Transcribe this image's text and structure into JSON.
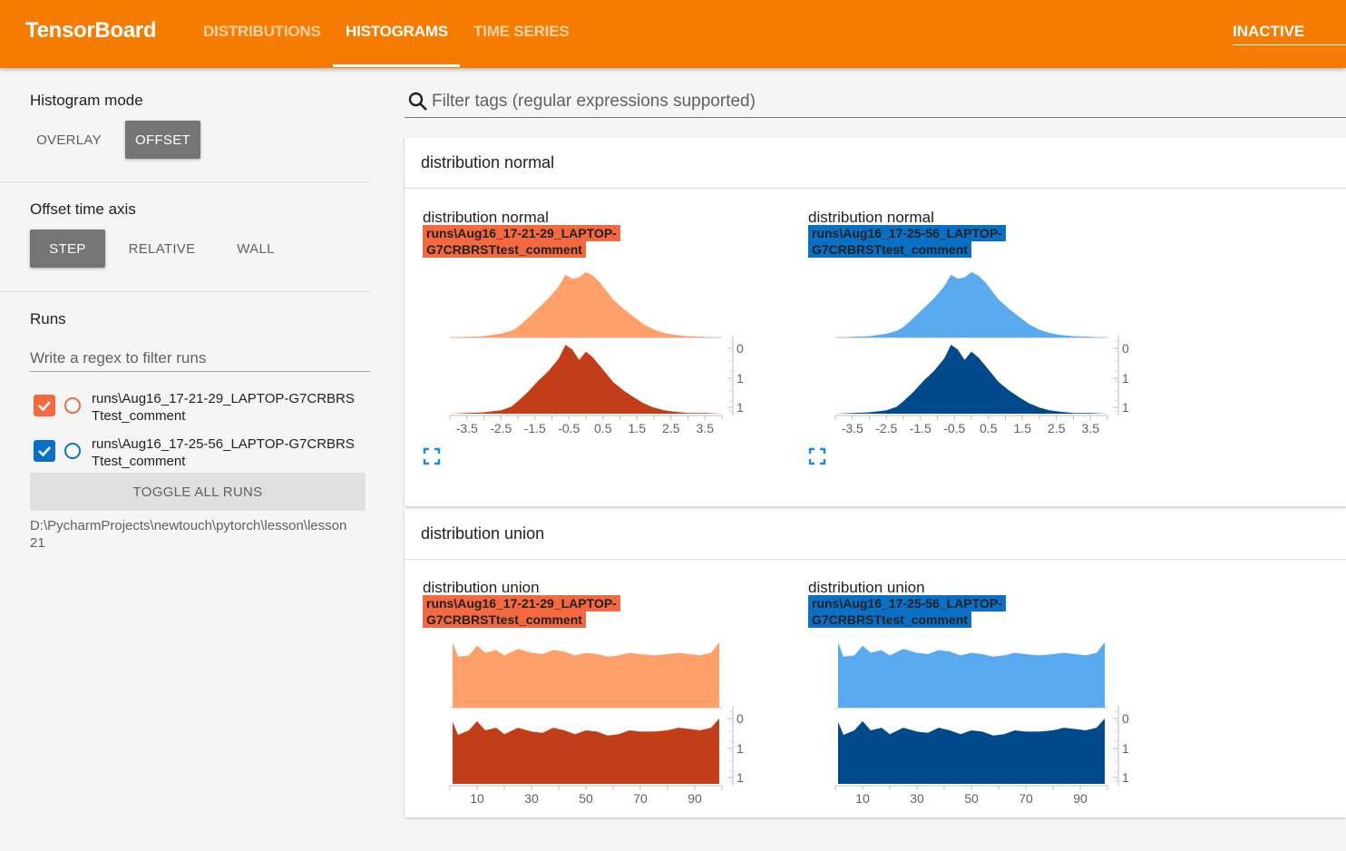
{
  "header": {
    "brand": "TensorBoard",
    "tabs": [
      {
        "label": "DISTRIBUTIONS",
        "active": false
      },
      {
        "label": "HISTOGRAMS",
        "active": true
      },
      {
        "label": "TIME SERIES",
        "active": false
      }
    ],
    "status": "INACTIVE"
  },
  "sidebar": {
    "histogram_mode": {
      "title": "Histogram mode",
      "options": [
        "OVERLAY",
        "OFFSET"
      ],
      "selected": "OFFSET"
    },
    "offset_time_axis": {
      "title": "Offset time axis",
      "options": [
        "STEP",
        "RELATIVE",
        "WALL"
      ],
      "selected": "STEP"
    },
    "runs": {
      "title": "Runs",
      "filter_placeholder": "Write a regex to filter runs",
      "items": [
        {
          "label": "runs\\Aug16_17-21-29_LAPTOP-G7CRBRSTtest_comment",
          "line1": "runs\\Aug16_17-21-29_LAPTOP-G7CRBRS",
          "line2": "Ttest_comment",
          "checked": true,
          "color": "#f4693f"
        },
        {
          "label": "runs\\Aug16_17-25-56_LAPTOP-G7CRBRSTtest_comment",
          "line1": "runs\\Aug16_17-25-56_LAPTOP-G7CRBRS",
          "line2": "Ttest_comment",
          "checked": true,
          "color": "#0a70c6"
        }
      ],
      "toggle_label": "TOGGLE ALL RUNS",
      "logdir_line1": "D:\\PycharmProjects\\newtouch\\pytorch\\lesson\\lesson",
      "logdir_line2": "21"
    }
  },
  "main": {
    "filter_placeholder": "Filter tags (regular expressions supported)",
    "cards": [
      {
        "title": "distribution normal",
        "charts": [
          {
            "title": "distribution normal",
            "run_line1": "runs\\Aug16_17-21-29_LAPTOP-",
            "run_line2": "G7CRBRSTtest_comment",
            "tag_color": "#f4693f",
            "light": "#ffa06b",
            "dark": "#c23e18"
          },
          {
            "title": "distribution normal",
            "run_line1": "runs\\Aug16_17-25-56_LAPTOP-",
            "run_line2": "G7CRBRSTtest_comment",
            "tag_color": "#0a70c6",
            "light": "#5aaaf0",
            "dark": "#00498a"
          }
        ]
      },
      {
        "title": "distribution union",
        "charts": [
          {
            "title": "distribution union",
            "run_line1": "runs\\Aug16_17-21-29_LAPTOP-",
            "run_line2": "G7CRBRSTtest_comment",
            "tag_color": "#f4693f",
            "light": "#ffa06b",
            "dark": "#c23e18"
          },
          {
            "title": "distribution union",
            "run_line1": "runs\\Aug16_17-25-56_LAPTOP-",
            "run_line2": "G7CRBRSTtest_comment",
            "tag_color": "#0a70c6",
            "light": "#5aaaf0",
            "dark": "#00498a"
          }
        ]
      }
    ]
  },
  "chart_data": [
    {
      "type": "area",
      "title": "distribution normal",
      "mode": "offset",
      "x_ticks": [
        "-3.5",
        "-2.5",
        "-1.5",
        "-0.5",
        "0.5",
        "1.5",
        "2.5",
        "3.5"
      ],
      "y_ticks": [
        "0",
        "1",
        "1"
      ],
      "xlim": [
        -4,
        4
      ],
      "x": [
        -4.0,
        -3.5,
        -3.0,
        -2.5,
        -2.2,
        -2.0,
        -1.7,
        -1.4,
        -1.1,
        -0.8,
        -0.6,
        -0.4,
        -0.2,
        0.0,
        0.2,
        0.4,
        0.6,
        0.8,
        1.1,
        1.4,
        1.7,
        2.0,
        2.3,
        2.6,
        3.0,
        3.5,
        4.0
      ],
      "series": [
        {
          "values": [
            0,
            0.01,
            0.02,
            0.06,
            0.1,
            0.16,
            0.3,
            0.45,
            0.6,
            0.78,
            0.96,
            0.9,
            0.92,
            1.0,
            0.95,
            0.85,
            0.72,
            0.58,
            0.44,
            0.32,
            0.2,
            0.12,
            0.07,
            0.04,
            0.02,
            0.01,
            0
          ]
        },
        {
          "values": [
            0,
            0.01,
            0.02,
            0.05,
            0.1,
            0.18,
            0.32,
            0.48,
            0.62,
            0.8,
            1.0,
            0.93,
            0.78,
            0.9,
            0.82,
            0.7,
            0.58,
            0.46,
            0.34,
            0.24,
            0.15,
            0.09,
            0.05,
            0.03,
            0.01,
            0.01,
            0
          ]
        }
      ]
    },
    {
      "type": "area",
      "title": "distribution union",
      "mode": "offset",
      "x_ticks": [
        "10",
        "30",
        "50",
        "70",
        "90"
      ],
      "y_ticks": [
        "0",
        "1",
        "1"
      ],
      "xlim": [
        0,
        100
      ],
      "x": [
        1,
        3,
        7,
        10,
        13,
        17,
        20,
        25,
        30,
        34,
        38,
        42,
        46,
        50,
        54,
        58,
        62,
        66,
        70,
        75,
        80,
        84,
        88,
        92,
        96,
        99
      ],
      "series": [
        {
          "values": [
            1.0,
            0.78,
            0.8,
            0.95,
            0.84,
            0.88,
            0.8,
            0.9,
            0.84,
            0.82,
            0.88,
            0.86,
            0.8,
            0.84,
            0.82,
            0.78,
            0.8,
            0.84,
            0.82,
            0.8,
            0.82,
            0.84,
            0.82,
            0.8,
            0.84,
            1.0
          ]
        },
        {
          "values": [
            0.95,
            0.75,
            0.82,
            0.96,
            0.82,
            0.86,
            0.76,
            0.86,
            0.8,
            0.78,
            0.86,
            0.82,
            0.76,
            0.82,
            0.8,
            0.74,
            0.76,
            0.82,
            0.8,
            0.8,
            0.82,
            0.86,
            0.84,
            0.82,
            0.86,
            1.0
          ]
        }
      ]
    }
  ]
}
